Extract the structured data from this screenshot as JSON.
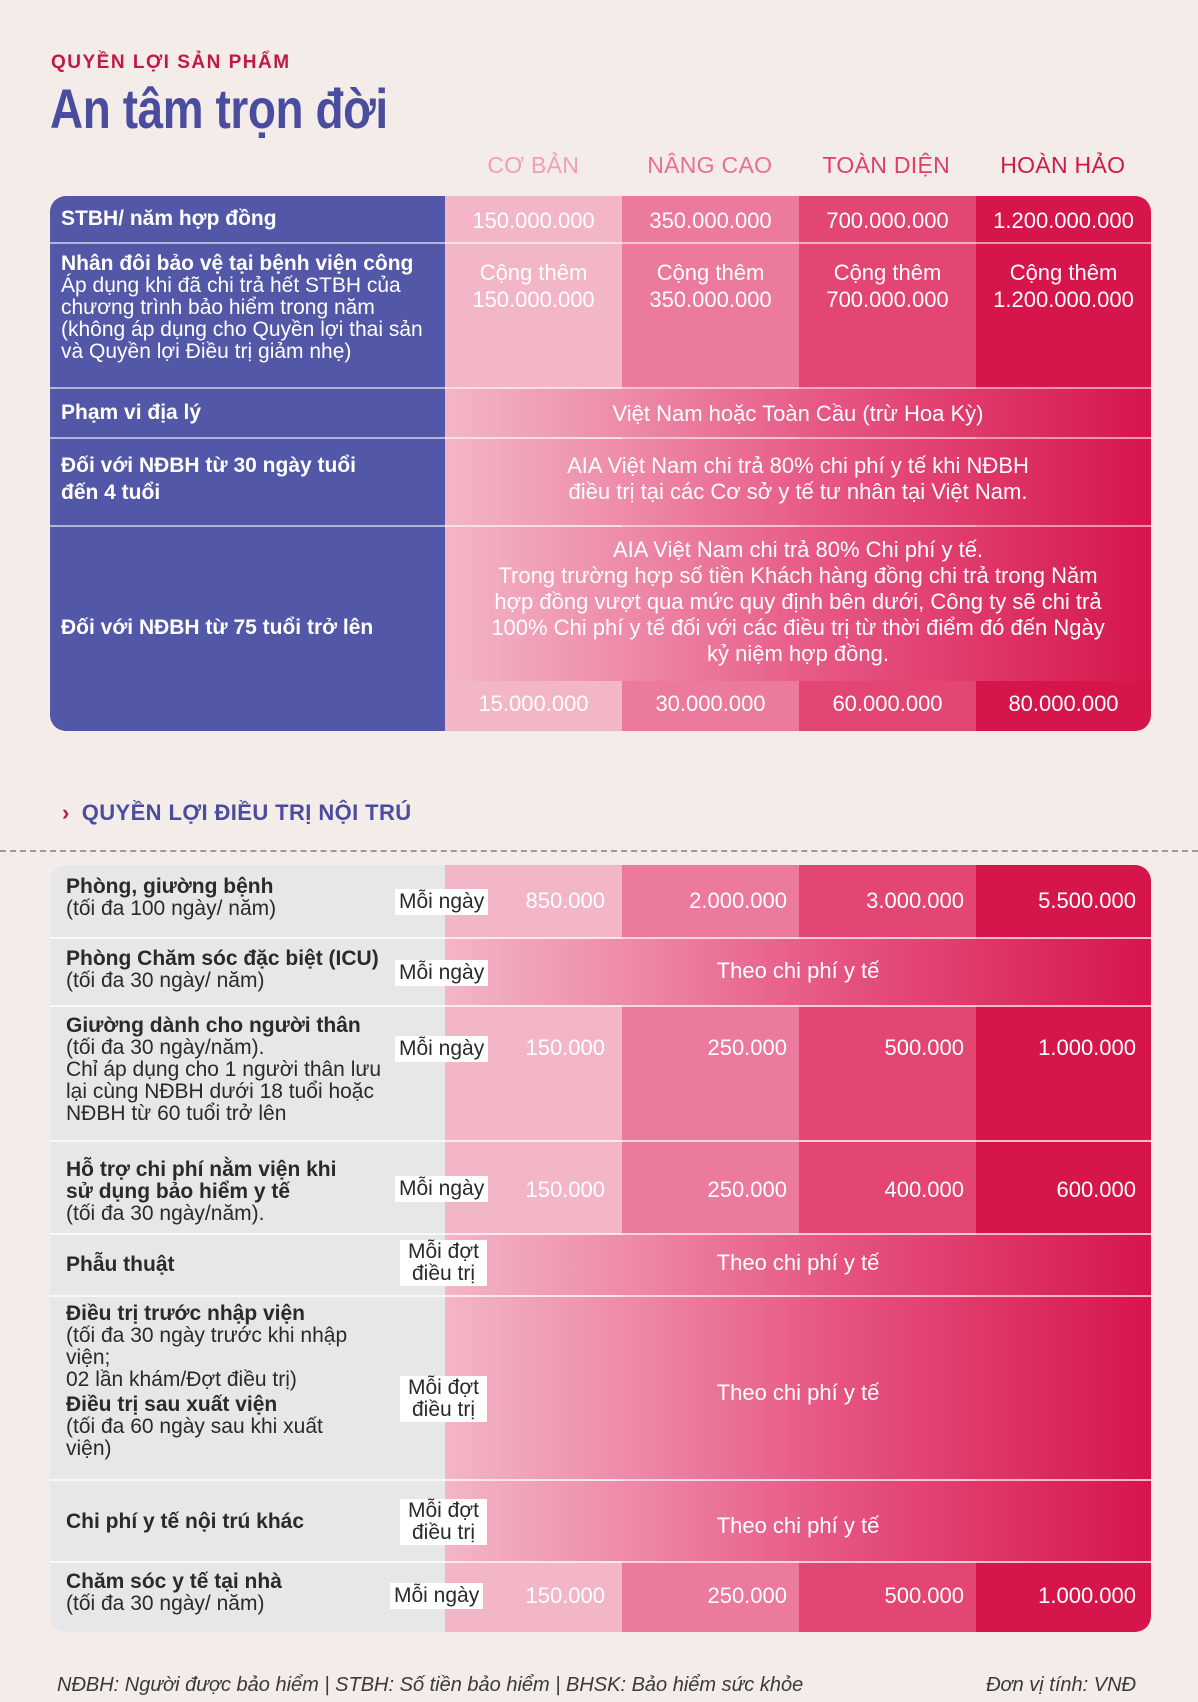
{
  "header": {
    "section_label": "QUYỀN LỢI SẢN PHẨM",
    "title": "An tâm trọn đời"
  },
  "tiers": [
    "CƠ BẢN",
    "NÂNG CAO",
    "TOÀN DIỆN",
    "HOÀN HẢO"
  ],
  "overview": {
    "rows": [
      {
        "label": "STBH/ năm hợp đồng",
        "values": [
          "150.000.000",
          "350.000.000",
          "700.000.000",
          "1.200.000.000"
        ]
      },
      {
        "label": "Nhân đôi bảo vệ tại bệnh viện công",
        "sub": "Áp dụng khi đã chi trả hết STBH của chương trình bảo hiểm trong năm (không áp dụng cho Quyền lợi thai sản và Quyền lợi Điều trị giảm nhẹ)",
        "values": [
          "Cộng thêm\n150.000.000",
          "Cộng thêm\n350.000.000",
          "Cộng thêm\n700.000.000",
          "Cộng thêm\n1.200.000.000"
        ]
      },
      {
        "label": "Phạm vi địa lý",
        "span": "Việt Nam hoặc Toàn Cầu (trừ Hoa Kỳ)"
      },
      {
        "label": "Đối với NĐBH từ 30 ngày tuổi đến 4 tuổi",
        "span": "AIA Việt Nam chi trả 80% chi phí y tế khi NĐBH điều trị tại các Cơ sở y tế tư nhân tại Việt Nam."
      },
      {
        "label": "Đối với NĐBH từ 75 tuổi trở lên",
        "span": "AIA Việt Nam chi trả 80% Chi phí y tế.\nTrong trường hợp số tiền Khách hàng đồng chi trả trong Năm hợp đồng vượt qua mức quy định bên dưới, Công ty sẽ chi trả 100% Chi phí y tế đối với các điều trị từ thời điểm đó đến Ngày kỷ niệm hợp đồng.",
        "values": [
          "15.000.000",
          "30.000.000",
          "60.000.000",
          "80.000.000"
        ]
      }
    ]
  },
  "inpatient": {
    "heading": "QUYỀN LỢI ĐIỀU TRỊ NỘI TRÚ",
    "rows": [
      {
        "label": "Phòng, giường bệnh",
        "sub": "(tối đa 100 ngày/ năm)",
        "unit": "Mỗi ngày",
        "values": [
          "850.000",
          "2.000.000",
          "3.000.000",
          "5.500.000"
        ]
      },
      {
        "label": "Phòng Chăm sóc đặc biệt (ICU)",
        "sub": "(tối đa 30 ngày/ năm)",
        "unit": "Mỗi ngày",
        "span": "Theo chi phí y tế"
      },
      {
        "label": "Giường dành cho người thân",
        "sub": "(tối đa 30 ngày/năm).\nChỉ áp dụng cho 1 người thân lưu lại cùng NĐBH dưới 18 tuổi hoặc NĐBH từ 60 tuổi trở lên",
        "unit": "Mỗi ngày",
        "values": [
          "150.000",
          "250.000",
          "500.000",
          "1.000.000"
        ]
      },
      {
        "label": "Hỗ trợ chi phí nằm viện khi sử dụng bảo hiểm y tế",
        "sub": "(tối đa 30 ngày/năm).",
        "unit": "Mỗi ngày",
        "values": [
          "150.000",
          "250.000",
          "400.000",
          "600.000"
        ]
      },
      {
        "label": "Phẫu thuật",
        "unit": "Mỗi đợt\nđiều trị",
        "span": "Theo chi phí y tế"
      },
      {
        "label": "Điều trị trước nhập viện",
        "sub": "(tối đa 30 ngày trước khi nhập viện;\n02 lần khám/Đợt điều trị)",
        "label2": "Điều trị sau xuất viện",
        "sub2": "(tối đa 60 ngày sau khi xuất viện)",
        "unit": "Mỗi đợt\nđiều trị",
        "span": "Theo chi phí y tế"
      },
      {
        "label": "Chi phí y tế nội trú khác",
        "unit": "Mỗi đợt\nđiều trị",
        "span": "Theo chi phí y tế"
      },
      {
        "label": "Chăm sóc y tế tại nhà",
        "sub": "(tối đa 30 ngày/ năm)",
        "unit": "Mỗi ngày",
        "values": [
          "150.000",
          "250.000",
          "500.000",
          "1.000.000"
        ]
      }
    ]
  },
  "footer": {
    "legend": "NĐBH: Người được bảo hiểm | STBH: Số tiền bảo hiểm | BHSK: Bảo hiểm sức khỏe",
    "unit": "Đơn vị tính: VNĐ"
  }
}
